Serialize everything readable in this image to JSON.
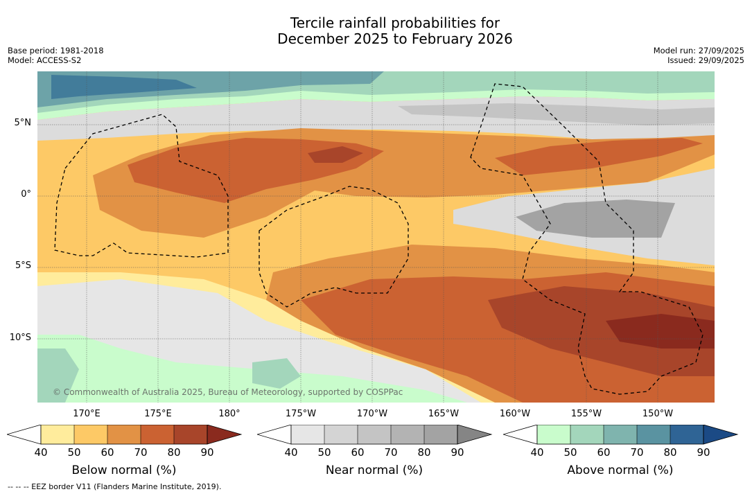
{
  "title": {
    "line1": "Tercile rainfall probabilities for",
    "line2": "December 2025 to February 2026"
  },
  "meta_left": {
    "base_period": "Base period: 1981-2018",
    "model": "Model: ACCESS-S2"
  },
  "meta_right": {
    "model_run": "Model run: 27/09/2025",
    "issued": "Issued: 29/09/2025"
  },
  "map": {
    "lat_labels": [
      "5°N",
      "0°",
      "5°S",
      "10°S"
    ],
    "lon_labels": [
      "170°E",
      "175°E",
      "180°",
      "175°W",
      "170°W",
      "165°W",
      "160°W",
      "155°W",
      "150°W"
    ],
    "copyright": "© Commonwealth of Australia 2025, Bureau of Meteorology, supported by COSPPac",
    "eez_legend": "-- -- -- EEZ border V11 (Flanders Marine Institute, 2019)."
  },
  "colorbars": [
    {
      "title": "Below normal (%)",
      "ticks": [
        "40",
        "50",
        "60",
        "70",
        "80",
        "90"
      ],
      "colors": [
        "#ffffff",
        "#ffec9c",
        "#fdc966",
        "#e29245",
        "#cb6232",
        "#a8452a",
        "#8a2a1e"
      ]
    },
    {
      "title": "Near normal (%)",
      "ticks": [
        "40",
        "50",
        "60",
        "70",
        "80",
        "90"
      ],
      "colors": [
        "#ffffff",
        "#e6e6e6",
        "#d4d4d4",
        "#c4c4c4",
        "#b3b3b3",
        "#a3a3a3",
        "#858585"
      ]
    },
    {
      "title": "Above normal (%)",
      "ticks": [
        "40",
        "50",
        "60",
        "70",
        "80",
        "90"
      ],
      "colors": [
        "#ffffff",
        "#c9fccc",
        "#a3d6bb",
        "#7fb4ae",
        "#5a93a1",
        "#2f6495",
        "#1b4a85"
      ]
    }
  ]
}
